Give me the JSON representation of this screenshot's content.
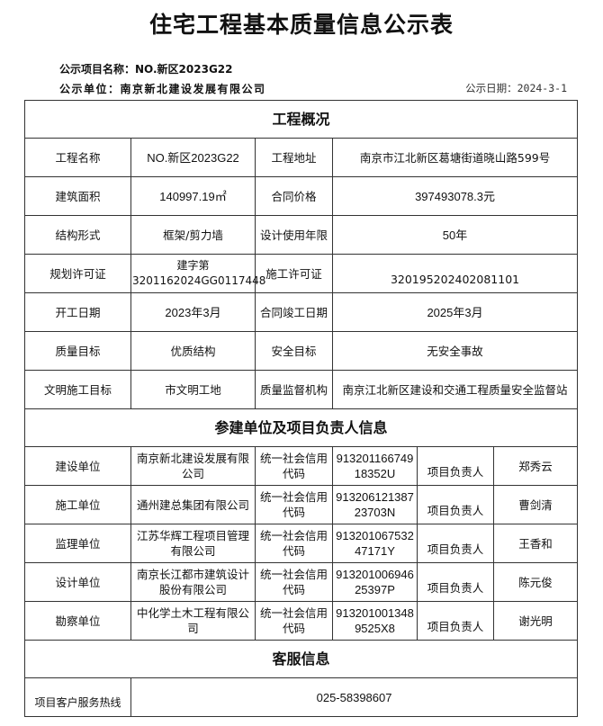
{
  "title": "住宅工程基本质量信息公示表",
  "project_name_line": "公示项目名称：NO.新区2023G22",
  "unit_line": "公示单位：南京新北建设发展有限公司",
  "date_line": "公示日期：2024-3-1",
  "overview": {
    "heading": "工程概况",
    "rows": [
      {
        "l1": "工程名称",
        "v1": "NO.新区2023G22",
        "l2": "工程地址",
        "v2": "南京市江北新区葛塘街道晓山路599号"
      },
      {
        "l1": "建筑面积",
        "v1": "140997.19㎡",
        "l2": "合同价格",
        "v2": "397493078.3元"
      },
      {
        "l1": "结构形式",
        "v1": "框架/剪力墙",
        "l2": "设计使用年限",
        "v2": "50年"
      },
      {
        "l1": "规划许可证",
        "v1": "建字第3201162024GG0117448",
        "l2": "施工许可证",
        "v2": "320195202402081101"
      },
      {
        "l1": "开工日期",
        "v1": "2023年3月",
        "l2": "合同竣工日期",
        "v2": "2025年3月"
      },
      {
        "l1": "质量目标",
        "v1": "优质结构",
        "l2": "安全目标",
        "v2": "无安全事故"
      },
      {
        "l1": "文明施工目标",
        "v1": "市文明工地",
        "l2": "质量监督机构",
        "v2": "南京江北新区建设和交通工程质量安全监督站"
      }
    ]
  },
  "participants": {
    "heading": "参建单位及项目负责人信息",
    "rows": [
      {
        "role": "建设单位",
        "company": "南京新北建设发展有限公司",
        "code_label": "统一社会信用代码",
        "code": "91320116674918352U",
        "lead_label": "项目负责人",
        "lead": "郑秀云"
      },
      {
        "role": "施工单位",
        "company": "通州建总集团有限公司",
        "code_label": "统一社会信用代码",
        "code": "91320612138723703N",
        "lead_label": "项目负责人",
        "lead": "曹剑清"
      },
      {
        "role": "监理单位",
        "company": "江苏华辉工程项目管理有限公司",
        "code_label": "统一社会信用代码",
        "code": "91320106753247171Y",
        "lead_label": "项目负责人",
        "lead": "王香和"
      },
      {
        "role": "设计单位",
        "company": "南京长江都市建筑设计股份有限公司",
        "code_label": "统一社会信用代码",
        "code": "91320100694625397P",
        "lead_label": "项目负责人",
        "lead": "陈元俊"
      },
      {
        "role": "勘察单位",
        "company": "中化学土木工程有限公司",
        "code_label": "统一社会信用代码",
        "code": "9132010013489525X8",
        "lead_label": "项目负责人",
        "lead": "谢光明"
      }
    ]
  },
  "service": {
    "heading": "客服信息",
    "label": "项目客户服务热线",
    "value": "025-58398607"
  }
}
